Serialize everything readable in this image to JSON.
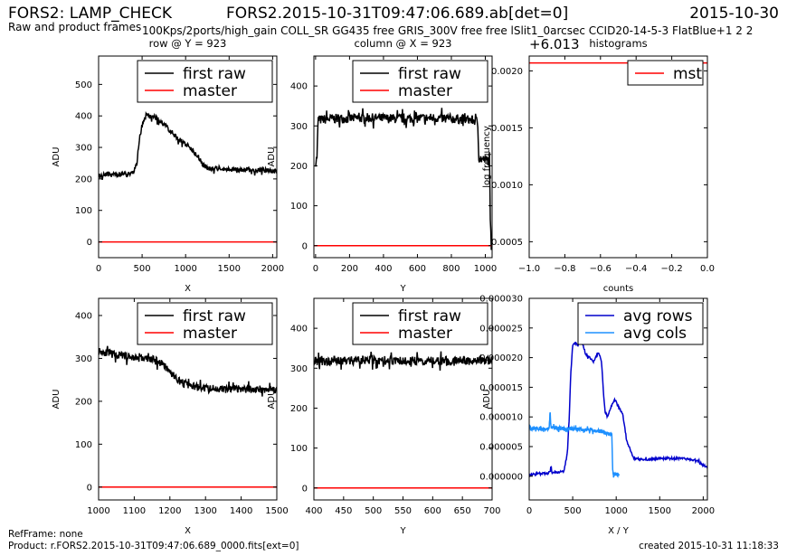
{
  "header": {
    "title": "FORS2: LAMP_CHECK",
    "subtitle": "Raw and product frames",
    "file": "FORS2.2015-10-31T09:47:06.689.ab[det=0]",
    "date": "2015-10-30",
    "setup": "100Kps/2ports/high_gain COLL_SR GG435 free GRIS_300V free free lSlit1_0arcsec CCID20-14-5-3 FlatBlue+1 2 2"
  },
  "footer": {
    "refframe": "RefFrame: none",
    "product": "Product: r.FORS2.2015-10-31T09:47:06.689_0000.fits[ext=0]",
    "created": "created 2015-10-31 11:18:33"
  },
  "colors": {
    "raw": "#000000",
    "master": "#ff0000",
    "avg_rows": "#0000cc",
    "avg_cols": "#1e90ff"
  },
  "chart_data": [
    {
      "id": "p1",
      "type": "line",
      "title": "row @ Y = 923",
      "xlabel": "X",
      "ylabel": "ADU",
      "xlim": [
        0,
        2048
      ],
      "ylim": [
        -50,
        590
      ],
      "xticks": [
        0,
        500,
        1000,
        1500,
        2000
      ],
      "yticks": [
        0,
        100,
        200,
        300,
        400,
        500
      ],
      "legend": "top-right",
      "series": [
        {
          "name": "first raw",
          "color": "#000000",
          "noise": 8,
          "seed": 3,
          "x": [
            0,
            200,
            400,
            440,
            470,
            500,
            550,
            650,
            750,
            900,
            1050,
            1150,
            1200,
            1250,
            1400,
            1600,
            1800,
            2048
          ],
          "y": [
            215,
            212,
            218,
            250,
            330,
            370,
            405,
            395,
            375,
            330,
            300,
            270,
            245,
            235,
            232,
            230,
            228,
            225
          ]
        },
        {
          "name": "master",
          "color": "#ff0000",
          "noise": 0,
          "x": [
            0,
            2048
          ],
          "y": [
            0,
            0
          ]
        }
      ]
    },
    {
      "id": "p2",
      "type": "line",
      "title": "column @ X = 923",
      "xlabel": "Y",
      "ylabel": "ADU",
      "xlim": [
        -10,
        1040
      ],
      "ylim": [
        -30,
        475
      ],
      "xticks": [
        0,
        200,
        400,
        600,
        800,
        1000
      ],
      "yticks": [
        0,
        100,
        200,
        300,
        400
      ],
      "legend": "top-right",
      "series": [
        {
          "name": "first raw",
          "color": "#000000",
          "noise": 12,
          "seed": 7,
          "x": [
            0,
            8,
            15,
            100,
            300,
            500,
            700,
            900,
            955,
            962,
            1000,
            1025,
            1030,
            1035
          ],
          "y": [
            210,
            220,
            315,
            318,
            320,
            318,
            320,
            316,
            312,
            218,
            215,
            212,
            50,
            0
          ]
        },
        {
          "name": "master",
          "color": "#ff0000",
          "noise": 0,
          "x": [
            -10,
            1040
          ],
          "y": [
            0,
            0
          ]
        }
      ]
    },
    {
      "id": "p3",
      "type": "line",
      "title": "histograms",
      "xlabel": "counts",
      "ylabel": "log frequency",
      "offset_label": "+6.013",
      "xlim": [
        -1.0,
        0.0
      ],
      "ylim": [
        0.00036,
        0.00213
      ],
      "xticks": [
        -1.0,
        -0.8,
        -0.6,
        -0.4,
        -0.2,
        0.0
      ],
      "xtick_labels": [
        "−1.0",
        "−0.8",
        "−0.6",
        "−0.4",
        "−0.2",
        "0.0"
      ],
      "yticks": [
        0.0005,
        0.001,
        0.0015,
        0.002
      ],
      "ytick_labels": [
        "0.0005",
        "0.0010",
        "0.0015",
        "0.0020"
      ],
      "legend": "top-right",
      "series": [
        {
          "name": "mst",
          "color": "#ff0000",
          "noise": 0,
          "x": [
            -1.0,
            0.0
          ],
          "y": [
            0.00207,
            0.00207
          ]
        }
      ]
    },
    {
      "id": "p4",
      "type": "line",
      "title": "",
      "xlabel": "X",
      "ylabel": "ADU",
      "xlim": [
        1000,
        1500
      ],
      "ylim": [
        -30,
        440
      ],
      "xticks": [
        1000,
        1100,
        1200,
        1300,
        1400,
        1500
      ],
      "yticks": [
        0,
        100,
        200,
        300,
        400
      ],
      "legend": "top-right",
      "series": [
        {
          "name": "first raw",
          "color": "#000000",
          "noise": 9,
          "seed": 11,
          "x": [
            1000,
            1050,
            1100,
            1150,
            1180,
            1200,
            1230,
            1260,
            1300,
            1400,
            1500
          ],
          "y": [
            318,
            308,
            302,
            298,
            288,
            268,
            245,
            235,
            230,
            228,
            228
          ]
        },
        {
          "name": "master",
          "color": "#ff0000",
          "noise": 0,
          "x": [
            1000,
            1500
          ],
          "y": [
            0,
            0
          ]
        }
      ]
    },
    {
      "id": "p5",
      "type": "line",
      "title": "",
      "xlabel": "Y",
      "ylabel": "ADU",
      "xlim": [
        400,
        700
      ],
      "ylim": [
        -30,
        475
      ],
      "xticks": [
        400,
        450,
        500,
        550,
        600,
        650,
        700
      ],
      "yticks": [
        0,
        100,
        200,
        300,
        400
      ],
      "legend": "top-right",
      "series": [
        {
          "name": "first raw",
          "color": "#000000",
          "noise": 11,
          "seed": 19,
          "x": [
            400,
            500,
            600,
            700
          ],
          "y": [
            318,
            320,
            318,
            320
          ]
        },
        {
          "name": "master",
          "color": "#ff0000",
          "noise": 0,
          "x": [
            400,
            700
          ],
          "y": [
            0,
            0
          ]
        }
      ]
    },
    {
      "id": "p6",
      "type": "line",
      "title": "",
      "xlabel": "X / Y",
      "ylabel": "ADU",
      "xlim": [
        0,
        2048
      ],
      "ylim": [
        -4e-06,
        3e-05
      ],
      "xticks": [
        0,
        500,
        1000,
        1500,
        2000
      ],
      "yticks": [
        0.0,
        5e-06,
        1e-05,
        1.5e-05,
        2e-05,
        2.5e-05,
        3e-05
      ],
      "ytick_labels": [
        "0.000000",
        "0.000005",
        "0.000010",
        "0.000015",
        "0.000020",
        "0.000025",
        "0.000030"
      ],
      "legend": "top-right",
      "series": [
        {
          "name": "avg rows",
          "color": "#0000cc",
          "noise": 2e-07,
          "seed": 23,
          "x": [
            0,
            200,
            240,
            250,
            260,
            400,
            440,
            460,
            480,
            500,
            530,
            560,
            580,
            620,
            650,
            700,
            740,
            760,
            800,
            830,
            850,
            870,
            900,
            950,
            980,
            1000,
            1030,
            1060,
            1080,
            1120,
            1200,
            1300,
            1500,
            1700,
            1900,
            2048
          ],
          "y": [
            3e-07,
            5e-07,
            6e-07,
            2e-06,
            6e-07,
            8e-07,
            4e-06,
            1e-05,
            1.8e-05,
            2.2e-05,
            2.25e-05,
            2.2e-05,
            2.3e-05,
            2.2e-05,
            2.05e-05,
            2e-05,
            1.9e-05,
            2e-05,
            2.1e-05,
            1.95e-05,
            1.5e-05,
            1.1e-05,
            1e-05,
            1.2e-05,
            1.3e-05,
            1.25e-05,
            1.15e-05,
            1.1e-05,
            1e-05,
            6e-06,
            3e-06,
            2.8e-06,
            3e-06,
            3e-06,
            2.8e-06,
            1.5e-06
          ]
        },
        {
          "name": "avg cols",
          "color": "#1e90ff",
          "noise": 3e-07,
          "seed": 29,
          "x": [
            0,
            30,
            50,
            100,
            150,
            230,
            240,
            250,
            300,
            500,
            600,
            700,
            800,
            900,
            950,
            960,
            970,
            1000,
            1030
          ],
          "y": [
            8.5e-06,
            8e-06,
            8e-06,
            8.1e-06,
            8e-06,
            8.1e-06,
            1.1e-05,
            8.2e-06,
            8.1e-06,
            8e-06,
            7.9e-06,
            7.8e-06,
            7.6e-06,
            7.2e-06,
            7e-06,
            1e-06,
            3e-07,
            3e-07,
            3e-07
          ]
        }
      ]
    }
  ]
}
